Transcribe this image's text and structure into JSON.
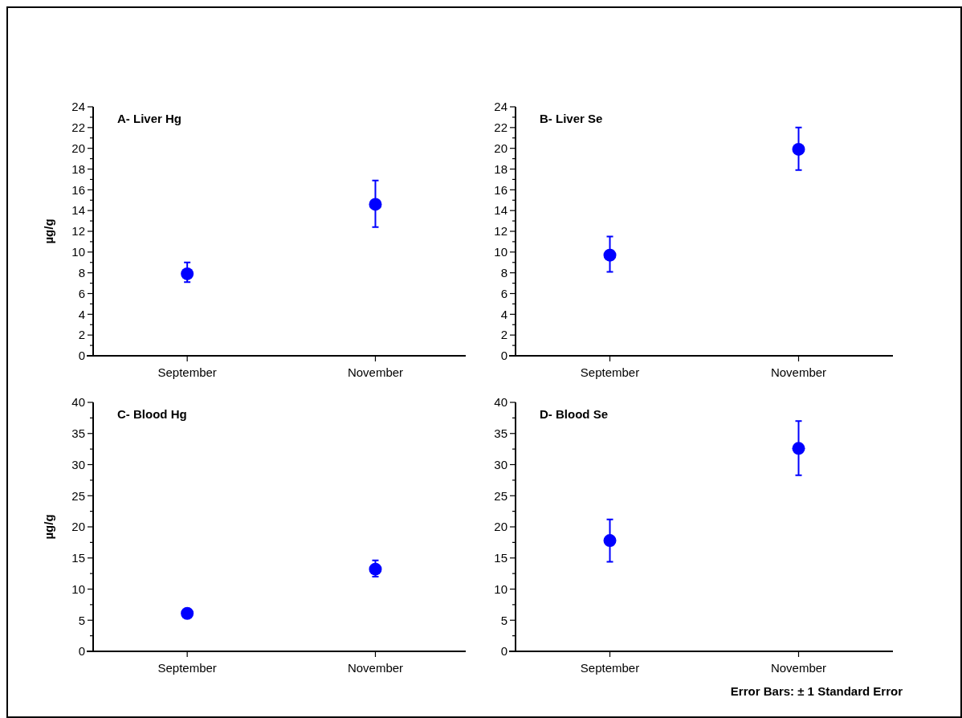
{
  "chart_data": [
    {
      "type": "scatter",
      "title": "A- Liver Hg",
      "ylabel": "µg/g",
      "categories": [
        "September",
        "November"
      ],
      "values": [
        7.9,
        14.6
      ],
      "errors": [
        [
          7.1,
          9.0
        ],
        [
          12.4,
          16.9
        ]
      ],
      "color": "#0000ff",
      "marker": "circle",
      "ylim": [
        0,
        24
      ],
      "yticks": [
        0,
        {
          "value": 1,
          "label": null
        },
        2,
        {
          "value": 3,
          "label": null
        },
        4,
        {
          "value": 5,
          "label": null
        },
        6,
        {
          "value": 7,
          "label": null
        },
        8,
        {
          "value": 9,
          "label": null
        },
        10,
        {
          "value": 11,
          "label": null
        },
        12,
        {
          "value": 13,
          "label": null
        },
        14,
        {
          "value": 15,
          "label": null
        },
        16,
        {
          "value": 17,
          "label": null
        },
        18,
        {
          "value": 19,
          "label": null
        },
        20,
        {
          "value": 21,
          "label": null
        },
        22,
        {
          "value": 23,
          "label": null
        },
        24
      ],
      "grid": false
    },
    {
      "type": "scatter",
      "title": "B- Liver Se",
      "categories": [
        "September",
        "November"
      ],
      "values": [
        9.7,
        19.9
      ],
      "errors": [
        [
          8.1,
          11.5
        ],
        [
          17.9,
          22.0
        ]
      ],
      "color": "#0000ff",
      "marker": "circle",
      "ylim": [
        0,
        24
      ],
      "yticks": [
        0,
        {
          "value": 1,
          "label": null
        },
        2,
        {
          "value": 3,
          "label": null
        },
        4,
        {
          "value": 5,
          "label": null
        },
        6,
        {
          "value": 7,
          "label": null
        },
        8,
        {
          "value": 9,
          "label": null
        },
        10,
        {
          "value": 11,
          "label": null
        },
        12,
        {
          "value": 13,
          "label": null
        },
        14,
        {
          "value": 15,
          "label": null
        },
        16,
        {
          "value": 17,
          "label": null
        },
        18,
        {
          "value": 19,
          "label": null
        },
        20,
        {
          "value": 21,
          "label": null
        },
        22,
        {
          "value": 23,
          "label": null
        },
        24
      ],
      "grid": false
    },
    {
      "type": "scatter",
      "title": "C- Blood Hg",
      "ylabel": "µg/g",
      "categories": [
        "September",
        "November"
      ],
      "values": [
        6.1,
        13.2
      ],
      "errors": [
        null,
        [
          12.0,
          14.6
        ]
      ],
      "color": "#0000ff",
      "marker": "circle",
      "ylim": [
        0,
        40
      ],
      "yticks": [
        0,
        {
          "value": 2.5,
          "label": null
        },
        5,
        {
          "value": 7.5,
          "label": null
        },
        10,
        {
          "value": 12.5,
          "label": null
        },
        15,
        {
          "value": 17.5,
          "label": null
        },
        20,
        {
          "value": 22.5,
          "label": null
        },
        25,
        {
          "value": 27.5,
          "label": null
        },
        30,
        {
          "value": 32.5,
          "label": null
        },
        35,
        {
          "value": 37.5,
          "label": null
        },
        40
      ],
      "grid": false
    },
    {
      "type": "scatter",
      "title": "D- Blood Se",
      "categories": [
        "September",
        "November"
      ],
      "values": [
        17.8,
        32.6
      ],
      "errors": [
        [
          14.4,
          21.2
        ],
        [
          28.3,
          37.0
        ]
      ],
      "color": "#0000ff",
      "marker": "circle",
      "ylim": [
        0,
        40
      ],
      "yticks": [
        0,
        {
          "value": 2.5,
          "label": null
        },
        5,
        {
          "value": 7.5,
          "label": null
        },
        10,
        {
          "value": 12.5,
          "label": null
        },
        15,
        {
          "value": 17.5,
          "label": null
        },
        20,
        {
          "value": 22.5,
          "label": null
        },
        25,
        {
          "value": 27.5,
          "label": null
        },
        30,
        {
          "value": 32.5,
          "label": null
        },
        35,
        {
          "value": 37.5,
          "label": null
        },
        40
      ],
      "grid": false,
      "annotations": [
        "Error Bars: ± 1 Standard Error"
      ]
    }
  ]
}
